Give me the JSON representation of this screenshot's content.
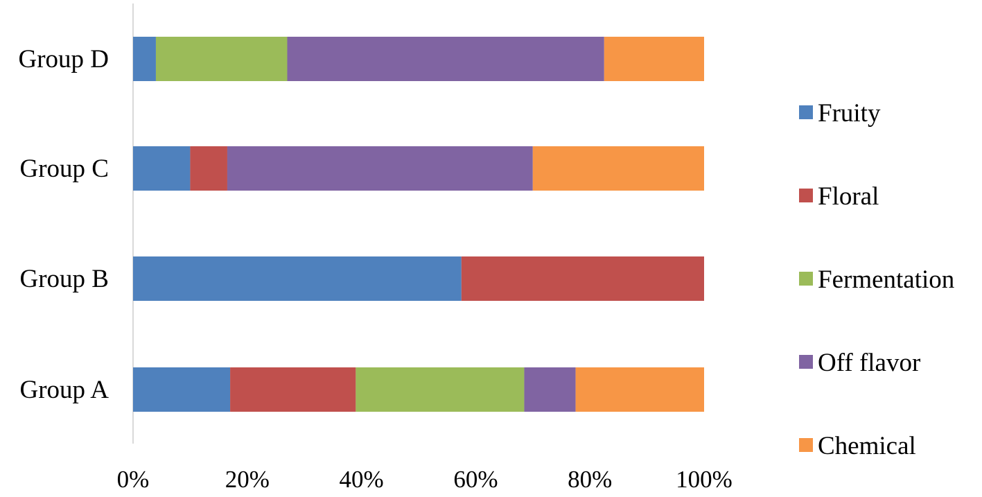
{
  "chart_data": {
    "type": "bar",
    "orientation": "horizontal",
    "stacked": true,
    "percent_stacked": true,
    "categories": [
      "Group A",
      "Group B",
      "Group C",
      "Group D"
    ],
    "series": [
      {
        "name": "Fruity",
        "color": "#4F81BD",
        "values": [
          17,
          57.5,
          10,
          4
        ]
      },
      {
        "name": "Floral",
        "color": "#C0504D",
        "values": [
          22,
          42.5,
          6.5,
          0
        ]
      },
      {
        "name": "Fermentation",
        "color": "#9BBB59",
        "values": [
          29.5,
          0,
          0,
          23
        ]
      },
      {
        "name": "Off flavor",
        "color": "#8064A2",
        "values": [
          9,
          0,
          53.5,
          55.5
        ]
      },
      {
        "name": "Chemical",
        "color": "#F79646",
        "values": [
          22.5,
          0,
          30,
          17.5
        ]
      }
    ],
    "x_ticks": [
      "0%",
      "20%",
      "40%",
      "60%",
      "80%",
      "100%"
    ],
    "xlim": [
      0,
      100
    ],
    "grid": false,
    "legend_position": "right",
    "title": "",
    "xlabel": "",
    "ylabel": ""
  }
}
